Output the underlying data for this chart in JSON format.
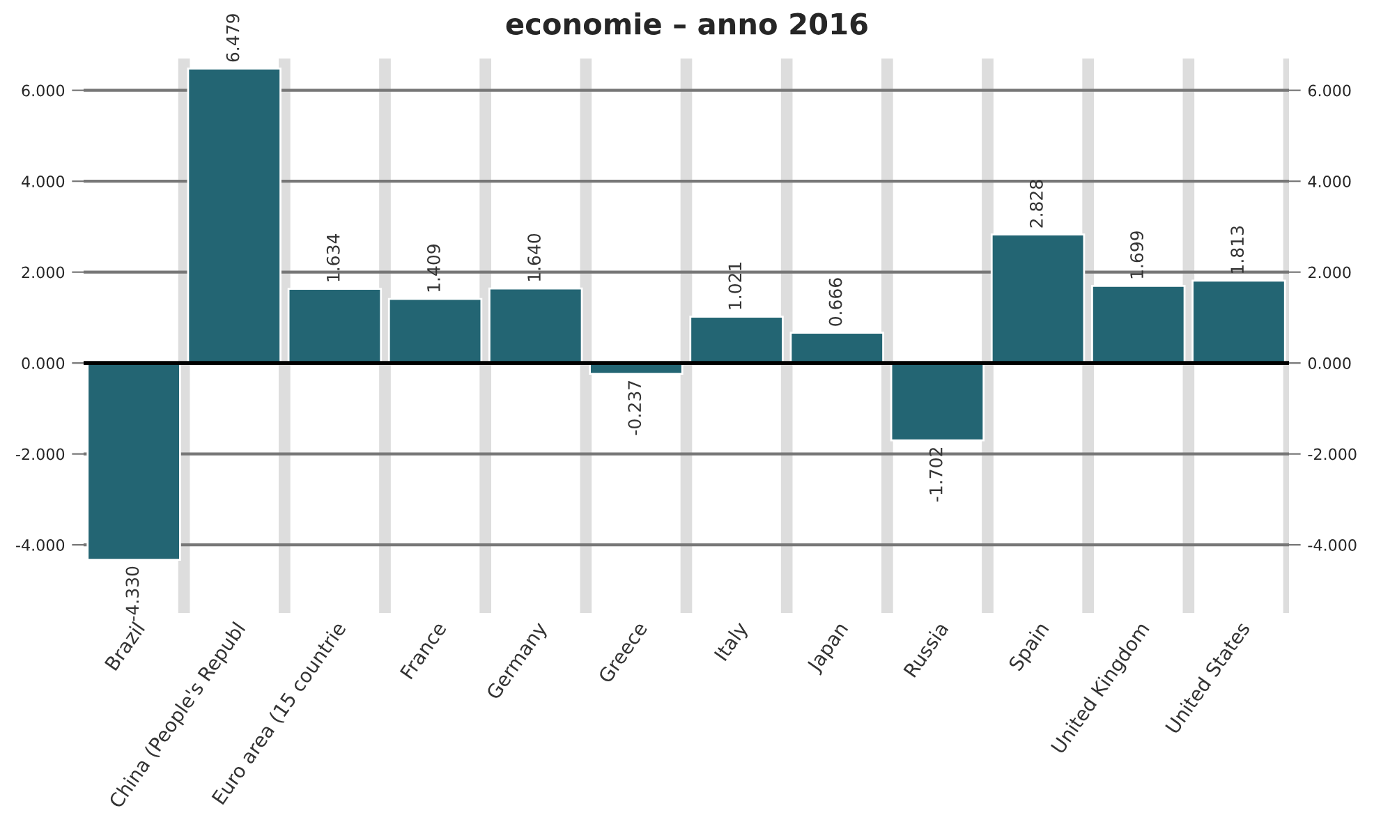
{
  "chart_data": {
    "type": "bar",
    "title": "economie – anno 2016",
    "categories": [
      "Brazil",
      "China (People's Republ",
      "Euro area (15 countrie",
      "France",
      "Germany",
      "Greece",
      "Italy",
      "Japan",
      "Russia",
      "Spain",
      "United Kingdom",
      "United States"
    ],
    "values": [
      -4.33,
      6.479,
      1.634,
      1.409,
      1.64,
      -0.237,
      1.021,
      0.666,
      -1.702,
      2.828,
      1.699,
      1.813
    ],
    "value_labels": [
      "-4.330",
      "6.479",
      "1.634",
      "1.409",
      "1.640",
      "-0.237",
      "1.021",
      "0.666",
      "-1.702",
      "2.828",
      "1.699",
      "1.813"
    ],
    "color": "#236573",
    "ylim": [
      -5.5,
      6.7
    ],
    "yticks": [
      {
        "value": -4,
        "label": "-4.000"
      },
      {
        "value": -2,
        "label": "-2.000"
      },
      {
        "value": 0,
        "label": "0.000"
      },
      {
        "value": 2,
        "label": "2.000"
      },
      {
        "value": 4,
        "label": "4.000"
      },
      {
        "value": 6,
        "label": "6.000"
      }
    ],
    "y2lim": [
      -5.5,
      6.7
    ],
    "y2ticks": [
      {
        "value": -4,
        "label": "-4.000"
      },
      {
        "value": -2,
        "label": "-2.000"
      },
      {
        "value": 0,
        "label": "0.000"
      },
      {
        "value": 2,
        "label": "2.000"
      },
      {
        "value": 4,
        "label": "4.000"
      },
      {
        "value": 6,
        "label": "6.000"
      }
    ],
    "grid": true
  }
}
